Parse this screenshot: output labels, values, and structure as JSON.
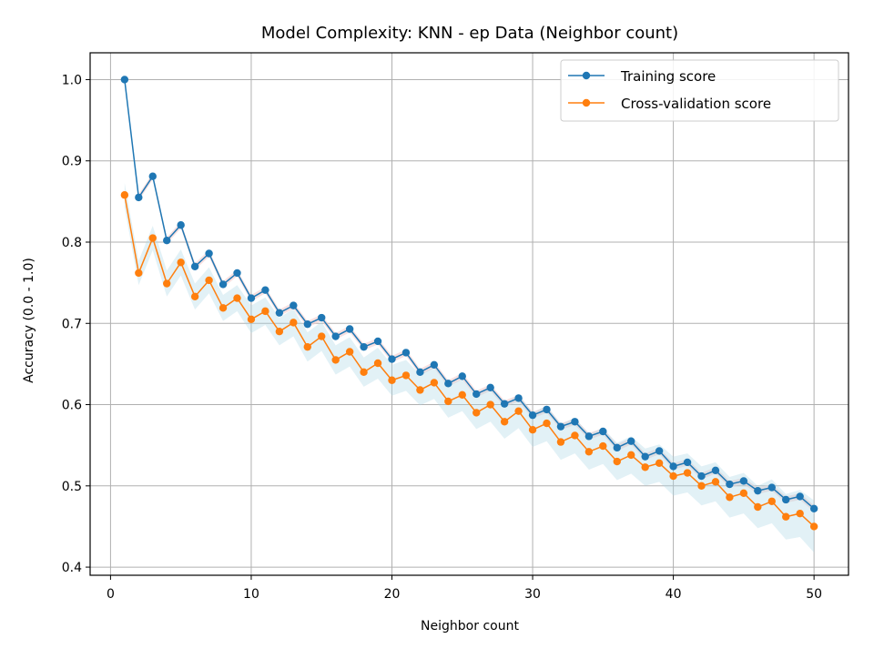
{
  "chart_data": {
    "type": "line",
    "title": "Model Complexity: KNN - ep Data (Neighbor count)",
    "xlabel": "Neighbor count",
    "ylabel": "Accuracy (0.0 - 1.0)",
    "xlim": [
      -1.45,
      52.45
    ],
    "ylim": [
      0.39,
      1.033
    ],
    "xticks": [
      0,
      10,
      20,
      30,
      40,
      50
    ],
    "yticks": [
      0.4,
      0.5,
      0.6,
      0.7,
      0.8,
      0.9,
      1.0
    ],
    "xtick_labels": [
      "0",
      "10",
      "20",
      "30",
      "40",
      "50"
    ],
    "ytick_labels": [
      "0.4",
      "0.5",
      "0.6",
      "0.7",
      "0.8",
      "0.9",
      "1.0"
    ],
    "grid": true,
    "legend_position": "upper right",
    "x": [
      1,
      2,
      3,
      4,
      5,
      6,
      7,
      8,
      9,
      10,
      11,
      12,
      13,
      14,
      15,
      16,
      17,
      18,
      19,
      20,
      21,
      22,
      23,
      24,
      25,
      26,
      27,
      28,
      29,
      30,
      31,
      32,
      33,
      34,
      35,
      36,
      37,
      38,
      39,
      40,
      41,
      42,
      43,
      44,
      45,
      46,
      47,
      48,
      49,
      50
    ],
    "series": [
      {
        "name": "Training score",
        "color": "#1f77b4",
        "band_color": "#f4cccc",
        "values": [
          1.0,
          0.855,
          0.881,
          0.802,
          0.821,
          0.77,
          0.786,
          0.748,
          0.762,
          0.731,
          0.741,
          0.713,
          0.722,
          0.699,
          0.707,
          0.684,
          0.693,
          0.671,
          0.678,
          0.656,
          0.664,
          0.64,
          0.649,
          0.626,
          0.635,
          0.613,
          0.621,
          0.601,
          0.608,
          0.587,
          0.594,
          0.573,
          0.579,
          0.561,
          0.567,
          0.547,
          0.555,
          0.536,
          0.543,
          0.524,
          0.529,
          0.512,
          0.519,
          0.502,
          0.506,
          0.494,
          0.498,
          0.483,
          0.487,
          0.472
        ],
        "band": [
          0.002,
          0.004,
          0.004,
          0.004,
          0.004,
          0.004,
          0.004,
          0.004,
          0.004,
          0.004,
          0.004,
          0.004,
          0.004,
          0.004,
          0.004,
          0.004,
          0.004,
          0.004,
          0.004,
          0.004,
          0.004,
          0.004,
          0.004,
          0.004,
          0.004,
          0.004,
          0.004,
          0.004,
          0.004,
          0.004,
          0.004,
          0.004,
          0.004,
          0.004,
          0.004,
          0.004,
          0.004,
          0.004,
          0.004,
          0.004,
          0.004,
          0.004,
          0.004,
          0.004,
          0.004,
          0.004,
          0.004,
          0.004,
          0.004,
          0.004
        ]
      },
      {
        "name": "Cross-validation score",
        "color": "#ff7f0e",
        "band_color": "#add8e6",
        "values": [
          0.858,
          0.762,
          0.805,
          0.749,
          0.775,
          0.733,
          0.753,
          0.719,
          0.731,
          0.705,
          0.715,
          0.69,
          0.701,
          0.671,
          0.684,
          0.655,
          0.665,
          0.64,
          0.651,
          0.63,
          0.636,
          0.618,
          0.627,
          0.604,
          0.612,
          0.59,
          0.6,
          0.579,
          0.592,
          0.569,
          0.577,
          0.554,
          0.562,
          0.542,
          0.549,
          0.53,
          0.538,
          0.523,
          0.528,
          0.512,
          0.516,
          0.5,
          0.505,
          0.486,
          0.491,
          0.474,
          0.481,
          0.462,
          0.466,
          0.45
        ],
        "band": [
          0.015,
          0.015,
          0.015,
          0.016,
          0.016,
          0.016,
          0.016,
          0.016,
          0.016,
          0.017,
          0.017,
          0.017,
          0.017,
          0.018,
          0.018,
          0.018,
          0.018,
          0.018,
          0.019,
          0.019,
          0.019,
          0.019,
          0.02,
          0.02,
          0.02,
          0.02,
          0.021,
          0.021,
          0.021,
          0.021,
          0.022,
          0.022,
          0.022,
          0.022,
          0.022,
          0.023,
          0.023,
          0.023,
          0.023,
          0.024,
          0.024,
          0.024,
          0.024,
          0.025,
          0.025,
          0.026,
          0.027,
          0.028,
          0.029,
          0.032
        ]
      }
    ]
  }
}
